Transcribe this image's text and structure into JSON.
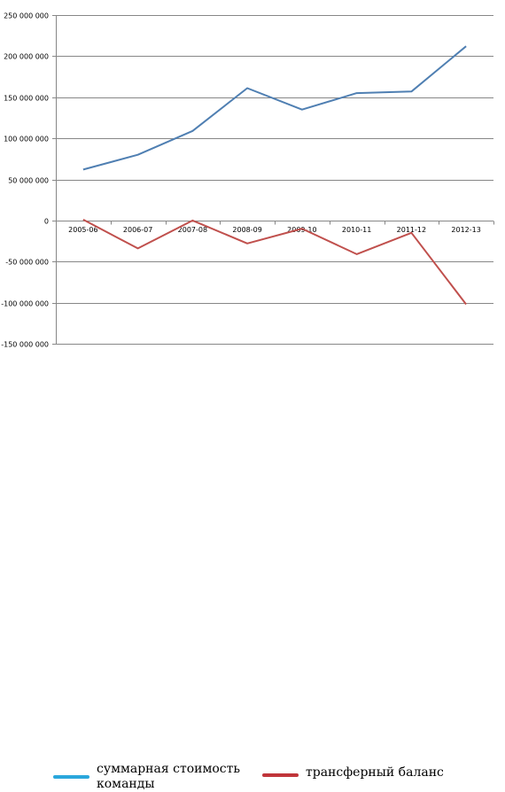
{
  "chart_data": {
    "type": "line",
    "title": "",
    "xlabel": "",
    "ylabel": "",
    "categories": [
      "2005-06",
      "2006-07",
      "2007-08",
      "2008-09",
      "2009-10",
      "2010-11",
      "2011-12",
      "2012-13"
    ],
    "y_tick_labels": [
      "250 000 000",
      "200 000 000",
      "150 000 000",
      "100 000 000",
      "50 000 000",
      "0",
      "-50 000 000",
      "-100 000 000",
      "-150 000 000"
    ],
    "y_ticks": [
      250000000,
      200000000,
      150000000,
      100000000,
      50000000,
      0,
      -50000000,
      -100000000,
      -150000000
    ],
    "ylim": [
      -150000000,
      250000000
    ],
    "grid": true,
    "legend_position": "bottom",
    "series": [
      {
        "name": "суммарная стоимость команды",
        "color": "#4f7fb2",
        "legend_color": "#2aa7dc",
        "values": [
          62000000,
          80000000,
          109000000,
          161000000,
          135000000,
          155000000,
          157000000,
          212000000
        ]
      },
      {
        "name": "трансферный баланс",
        "color": "#c0504d",
        "legend_color": "#c0353a",
        "values": [
          1000000,
          -34000000,
          0,
          -28000000,
          -10000000,
          -41000000,
          -15000000,
          -102000000
        ]
      }
    ]
  },
  "legend": {
    "items": [
      {
        "label_line1": "суммарная стоимость",
        "label_line2": "команды"
      },
      {
        "label_line1": "трансферный баланс",
        "label_line2": ""
      }
    ]
  }
}
